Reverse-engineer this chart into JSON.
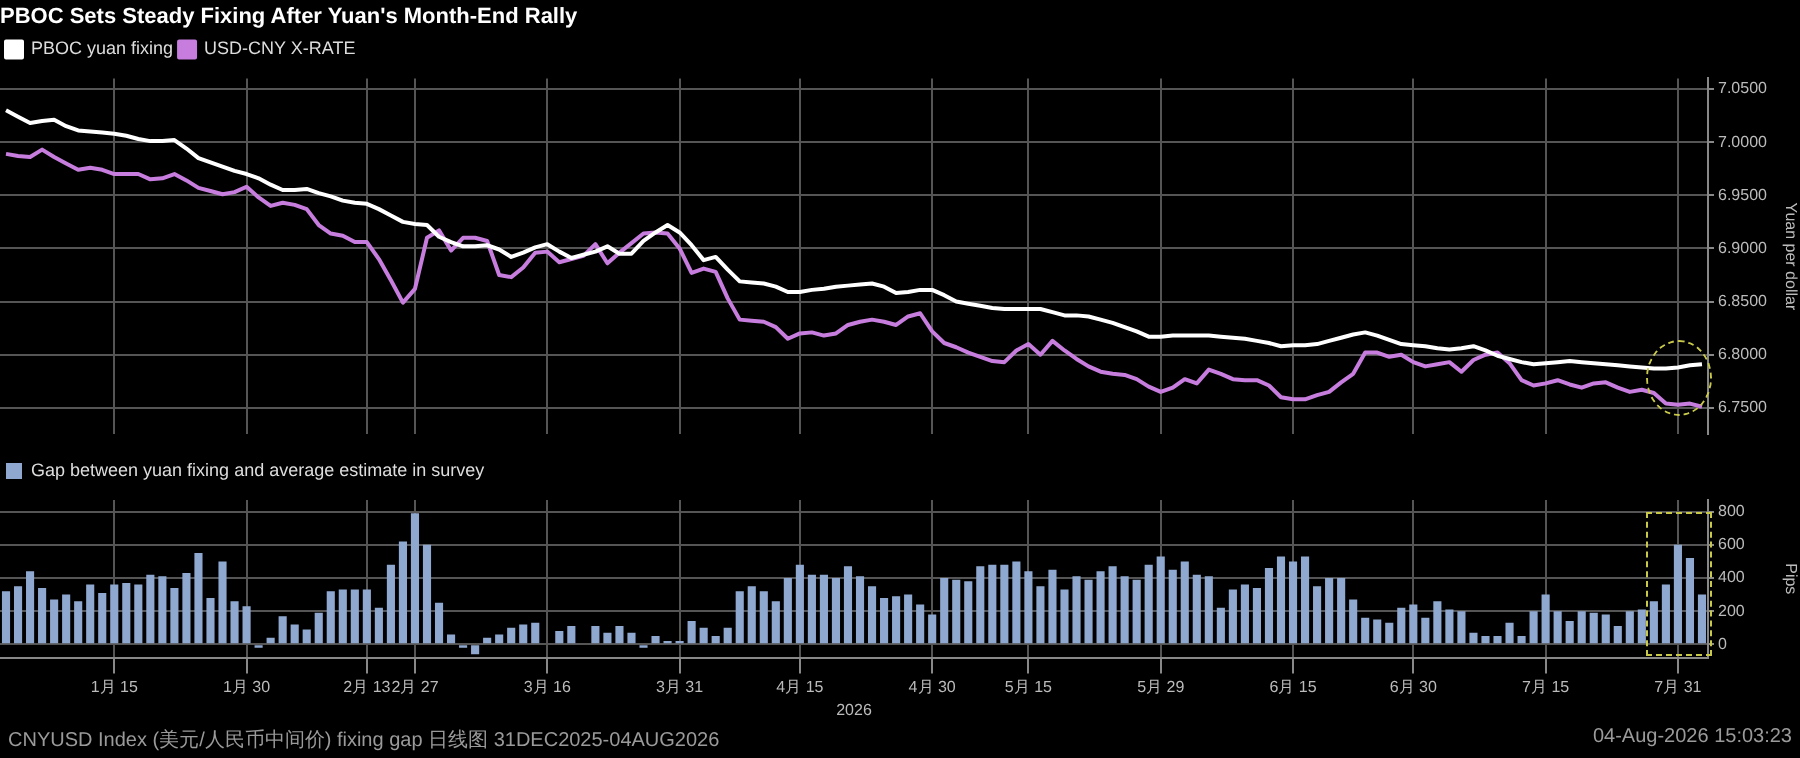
{
  "chart_data": [
    {
      "type": "line",
      "title": "PBOC Sets Steady Fixing After Yuan's Month-End Rally",
      "ylabel": "Yuan per dollar",
      "categories": [
        null,
        null,
        null,
        null,
        null,
        null,
        null,
        null,
        null,
        null,
        null,
        null,
        null,
        null,
        null,
        null,
        null,
        null,
        null,
        null,
        null,
        null,
        null,
        null,
        null,
        null,
        null,
        null,
        null,
        null,
        null,
        null,
        null,
        null,
        null,
        null,
        null,
        null,
        null,
        null,
        null,
        null,
        null,
        null,
        null,
        null,
        null,
        null,
        null,
        null,
        null,
        null,
        null,
        null,
        null,
        null,
        null,
        null,
        null,
        null,
        null,
        null,
        null,
        null,
        null,
        null,
        null,
        null,
        null,
        null,
        null,
        null,
        null,
        null,
        null,
        null,
        null,
        null,
        null,
        null,
        null,
        null,
        null,
        null,
        null,
        null,
        null,
        null,
        null,
        null,
        null,
        null,
        null,
        null,
        null,
        null,
        null,
        null,
        null,
        null,
        null,
        null,
        null,
        null,
        null,
        null,
        null,
        null,
        null,
        null,
        null,
        null,
        null,
        null,
        null,
        null,
        null,
        null,
        null,
        null,
        null,
        null,
        null,
        null,
        null,
        null,
        null,
        null,
        null,
        null,
        null,
        null,
        null,
        null,
        null,
        null,
        null,
        null,
        null,
        null,
        null,
        null
      ],
      "series": [
        {
          "name": "PBOC yuan fixing",
          "color": "#ffffff",
          "values": [
            7.03,
            7.024,
            7.018,
            7.02,
            7.021,
            7.015,
            7.011,
            7.01,
            7.009,
            7.008,
            7.006,
            7.003,
            7.001,
            7.001,
            7.002,
            6.994,
            6.985,
            6.981,
            6.977,
            6.973,
            6.97,
            6.966,
            6.96,
            6.955,
            6.955,
            6.956,
            6.952,
            6.949,
            6.945,
            6.943,
            6.942,
            6.937,
            6.931,
            6.925,
            6.923,
            6.922,
            6.911,
            6.906,
            6.902,
            6.902,
            6.903,
            6.899,
            6.892,
            6.896,
            6.901,
            6.904,
            6.897,
            6.891,
            6.894,
            6.897,
            6.902,
            6.895,
            6.895,
            6.907,
            6.915,
            6.922,
            6.915,
            6.903,
            6.889,
            6.892,
            6.88,
            6.869,
            6.868,
            6.867,
            6.864,
            6.859,
            6.859,
            6.861,
            6.862,
            6.864,
            6.865,
            6.866,
            6.867,
            6.864,
            6.858,
            6.859,
            6.861,
            6.861,
            6.856,
            6.85,
            6.848,
            6.846,
            6.844,
            6.843,
            6.843,
            6.843,
            6.843,
            6.84,
            6.837,
            6.837,
            6.836,
            6.833,
            6.83,
            6.826,
            6.822,
            6.817,
            6.817,
            6.818,
            6.818,
            6.818,
            6.818,
            6.817,
            6.816,
            6.815,
            6.813,
            6.811,
            6.808,
            6.809,
            6.809,
            6.81,
            6.813,
            6.816,
            6.819,
            6.821,
            6.818,
            6.814,
            6.81,
            6.809,
            6.808,
            6.806,
            6.805,
            6.806,
            6.808,
            6.804,
            6.799,
            6.796,
            6.793,
            6.791,
            6.792,
            6.793,
            6.794,
            6.793,
            6.792,
            6.791,
            6.79,
            6.789,
            6.788,
            6.787,
            6.787,
            6.788,
            6.79,
            6.791
          ]
        },
        {
          "name": "USD-CNY X-RATE",
          "color": "#c77dde",
          "values": [
            6.989,
            6.987,
            6.986,
            6.993,
            6.986,
            6.98,
            6.974,
            6.976,
            6.974,
            6.97,
            6.97,
            6.97,
            6.965,
            6.966,
            6.97,
            6.964,
            6.957,
            6.954,
            6.951,
            6.953,
            6.958,
            6.948,
            6.94,
            6.943,
            6.941,
            6.937,
            6.922,
            6.914,
            6.912,
            6.906,
            6.906,
            6.89,
            6.87,
            6.849,
            6.862,
            6.91,
            6.917,
            6.898,
            6.91,
            6.91,
            6.907,
            6.875,
            6.873,
            6.882,
            6.896,
            6.897,
            6.887,
            6.89,
            6.893,
            6.904,
            6.886,
            6.896,
            6.905,
            6.914,
            6.915,
            6.914,
            6.9,
            6.877,
            6.881,
            6.878,
            6.853,
            6.833,
            6.832,
            6.831,
            6.826,
            6.815,
            6.82,
            6.821,
            6.818,
            6.82,
            6.828,
            6.831,
            6.833,
            6.831,
            6.828,
            6.836,
            6.839,
            6.822,
            6.811,
            6.807,
            6.802,
            6.798,
            6.794,
            6.793,
            6.804,
            6.81,
            6.8,
            6.813,
            6.804,
            6.796,
            6.789,
            6.784,
            6.782,
            6.781,
            6.777,
            6.77,
            6.765,
            6.769,
            6.777,
            6.773,
            6.786,
            6.782,
            6.777,
            6.776,
            6.776,
            6.771,
            6.76,
            6.758,
            6.758,
            6.762,
            6.765,
            6.774,
            6.782,
            6.802,
            6.802,
            6.798,
            6.8,
            6.793,
            6.789,
            6.791,
            6.793,
            6.784,
            6.795,
            6.8,
            6.802,
            6.792,
            6.776,
            6.771,
            6.773,
            6.776,
            6.772,
            6.769,
            6.773,
            6.774,
            6.769,
            6.765,
            6.767,
            6.764,
            6.754,
            6.753,
            6.754,
            6.751
          ]
        }
      ],
      "ylim": [
        6.725,
        7.06
      ],
      "yticks": [
        {
          "value": 6.75,
          "label": "6.7500"
        },
        {
          "value": 6.8,
          "label": "6.8000"
        },
        {
          "value": 6.85,
          "label": "6.8500"
        },
        {
          "value": 6.9,
          "label": "6.9000"
        },
        {
          "value": 6.95,
          "label": "6.9500"
        },
        {
          "value": 7.0,
          "label": "7.0000"
        },
        {
          "value": 7.05,
          "label": "7.0500"
        }
      ],
      "grid": true,
      "legend": "top left",
      "marker": "none",
      "tick_labels": "y"
    },
    {
      "type": "bar",
      "xlabel": "2026",
      "ylabel": "Pips",
      "categories": [
        null,
        null,
        null,
        null,
        null,
        null,
        null,
        null,
        null,
        "1月 15",
        null,
        null,
        null,
        null,
        null,
        null,
        null,
        null,
        null,
        null,
        "1月 30",
        null,
        null,
        null,
        null,
        null,
        null,
        null,
        null,
        null,
        "2月 13",
        null,
        null,
        null,
        "2月 27",
        null,
        null,
        null,
        null,
        null,
        null,
        null,
        null,
        null,
        null,
        "3月 16",
        null,
        null,
        null,
        null,
        null,
        null,
        null,
        null,
        null,
        null,
        "3月 31",
        null,
        null,
        null,
        null,
        null,
        null,
        null,
        null,
        null,
        "4月 15",
        null,
        null,
        null,
        null,
        null,
        null,
        null,
        null,
        null,
        null,
        "4月 30",
        null,
        null,
        null,
        null,
        null,
        null,
        null,
        "5月 15",
        null,
        null,
        null,
        null,
        null,
        null,
        null,
        null,
        null,
        null,
        "5月 29",
        null,
        null,
        null,
        null,
        null,
        null,
        null,
        null,
        null,
        null,
        "6月 15",
        null,
        null,
        null,
        null,
        null,
        null,
        null,
        null,
        null,
        "6月 30",
        null,
        null,
        null,
        null,
        null,
        null,
        null,
        null,
        null,
        null,
        "7月 15",
        null,
        null,
        null,
        null,
        null,
        null,
        null,
        null,
        null,
        null,
        "7月 31",
        null,
        null
      ],
      "series": [
        {
          "name": "Gap between yuan fixing and average estimate in survey",
          "color": "#8fa8cf",
          "values": [
            320,
            350,
            440,
            340,
            270,
            300,
            260,
            360,
            310,
            360,
            370,
            360,
            420,
            410,
            340,
            430,
            550,
            280,
            500,
            260,
            230,
            -20,
            40,
            170,
            120,
            90,
            190,
            320,
            330,
            330,
            330,
            220,
            480,
            620,
            790,
            600,
            250,
            60,
            -20,
            -60,
            40,
            60,
            100,
            120,
            130,
            0,
            80,
            110,
            0,
            110,
            70,
            110,
            70,
            -20,
            50,
            20,
            20,
            140,
            100,
            50,
            100,
            320,
            350,
            320,
            260,
            400,
            480,
            420,
            420,
            400,
            470,
            410,
            350,
            280,
            290,
            300,
            240,
            180,
            400,
            390,
            380,
            470,
            480,
            480,
            500,
            440,
            350,
            450,
            330,
            410,
            390,
            440,
            470,
            410,
            390,
            480,
            530,
            450,
            500,
            420,
            410,
            220,
            330,
            360,
            340,
            460,
            530,
            500,
            530,
            350,
            400,
            400,
            270,
            160,
            150,
            130,
            220,
            240,
            160,
            260,
            210,
            200,
            70,
            50,
            50,
            130,
            50,
            200,
            300,
            200,
            140,
            200,
            190,
            180,
            110,
            200,
            210,
            260,
            360,
            600,
            520,
            300
          ]
        }
      ],
      "ylim": [
        -80,
        870
      ],
      "yticks": [
        0,
        200,
        400,
        600,
        800
      ],
      "grid": true,
      "legend": "top left",
      "annotations": [
        "CNYUSD Index (美元/人民币中间价) fixing gap 日线图 31DEC2025-04AUG2026",
        "04-Aug-2026 15:03:23"
      ]
    }
  ]
}
